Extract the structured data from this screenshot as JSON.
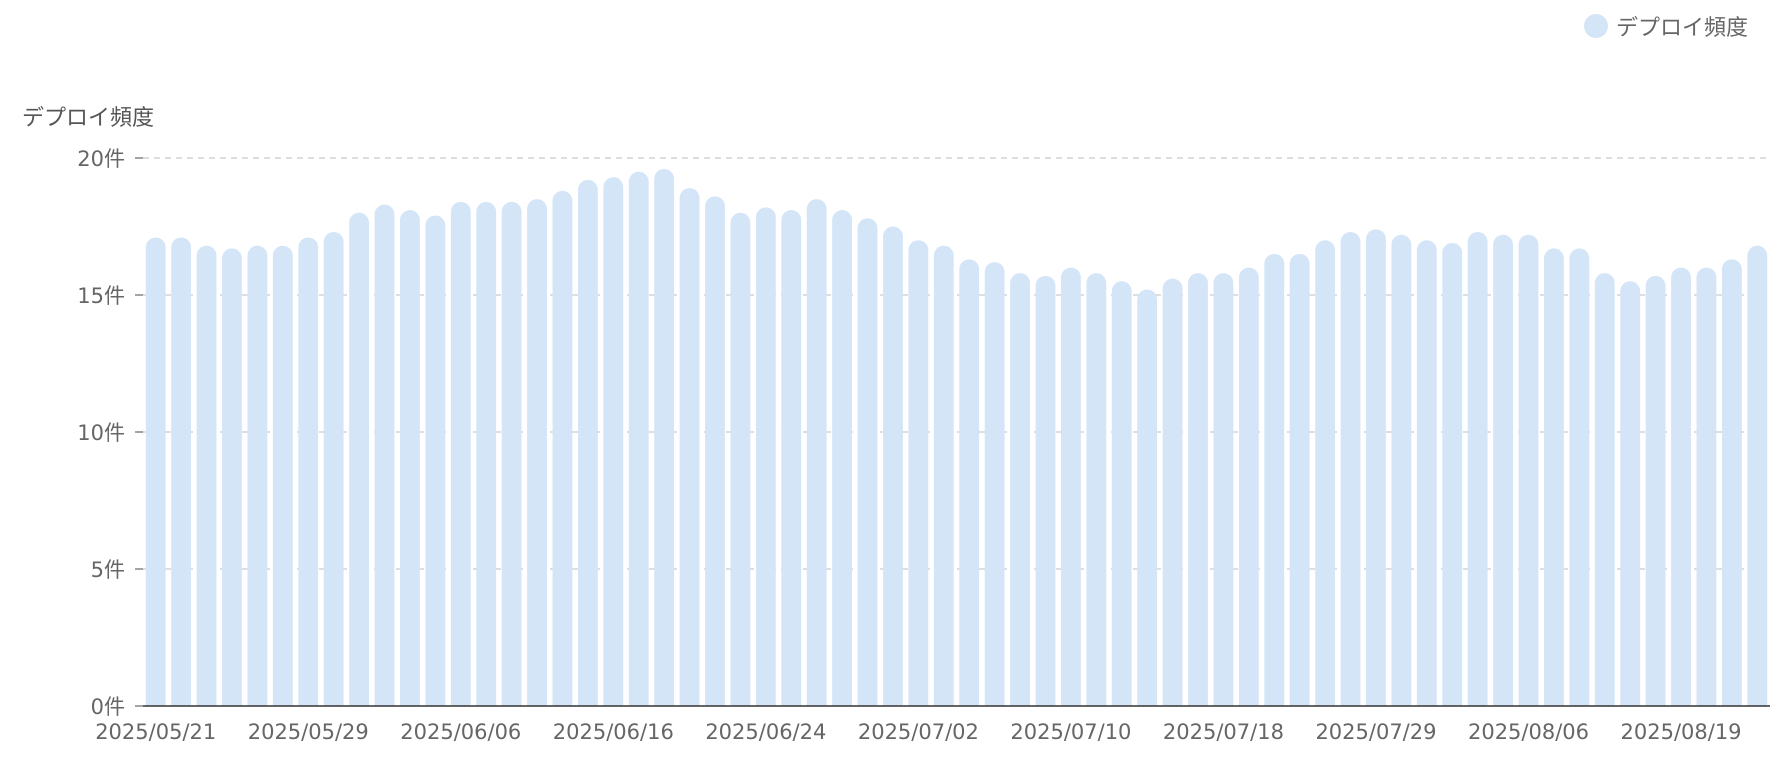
{
  "chart_data": {
    "type": "bar",
    "ylabel": "デプロイ頻度",
    "legend": {
      "position": "top-right",
      "entries": [
        "デプロイ頻度"
      ]
    },
    "y_ticks": [
      "0件",
      "5件",
      "10件",
      "15件",
      "20件"
    ],
    "ylim": [
      0,
      20
    ],
    "grid": true,
    "x_tick_labels": [
      "2025/05/21",
      "2025/05/29",
      "2025/06/06",
      "2025/06/16",
      "2025/06/24",
      "2025/07/02",
      "2025/07/10",
      "2025/07/18",
      "2025/07/29",
      "2025/08/06",
      "2025/08/19"
    ],
    "x_tick_index": [
      0,
      6,
      12,
      18,
      24,
      30,
      36,
      42,
      48,
      54,
      60
    ],
    "series": [
      {
        "name": "デプロイ頻度",
        "color": "#d3e5f7",
        "values": [
          17.1,
          17.1,
          16.8,
          16.7,
          16.8,
          16.8,
          17.1,
          17.3,
          18.0,
          18.3,
          18.1,
          17.9,
          18.4,
          18.4,
          18.4,
          18.5,
          18.8,
          19.2,
          19.3,
          19.5,
          19.6,
          18.9,
          18.6,
          18.0,
          18.2,
          18.1,
          18.5,
          18.1,
          17.8,
          17.5,
          17.0,
          16.8,
          16.3,
          16.2,
          15.8,
          15.7,
          16.0,
          15.8,
          15.5,
          15.2,
          15.6,
          15.8,
          15.8,
          16.0,
          16.5,
          16.5,
          17.0,
          17.3,
          17.4,
          17.2,
          17.0,
          16.9,
          17.3,
          17.2,
          17.2,
          16.7,
          16.7,
          15.8,
          15.5,
          15.7,
          16.0,
          16.0,
          16.3,
          16.8
        ]
      }
    ]
  }
}
